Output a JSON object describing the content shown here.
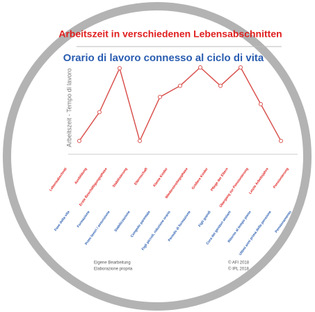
{
  "chart_data": {
    "type": "line",
    "title": "Arbeitszeit in  verschiedenen Lebensabschnitten",
    "subtitle": "Orario di lavoro connesso al ciclo di vita",
    "y_label": "Arbeitszeit - Tempo di lavoro",
    "categories": [
      "Lebensabschnitt",
      "Ausbildung",
      "Erste Beschäftigungsphase",
      "Stabilisierung",
      "Elternschaft",
      "Kleine Kinder",
      "Wiedereinstiegsphase",
      "Größere Kinder",
      "Pflege der Eltern",
      "Übergang zur Pensionierung",
      "Letzte Arbeitsjahre",
      "Pensionierung"
    ],
    "categories_it": [
      "Fase della vita",
      "Formazione",
      "Primi lavori / assunzione",
      "Stabilizzazione",
      "Congedo parentale",
      "Figli piccoli, riduzione orario",
      "Periodo di formazione",
      "Figli grandi",
      "Cura dei genitori anziani",
      "Ritorno al tempo pieno",
      "Ultimi anni prima della pensione",
      "Pensionamento"
    ],
    "series": [
      {
        "name": "Arbeitszeit",
        "color": "#d9534f",
        "values": [
          null,
          0.8,
          4.4,
          9.9,
          0.8,
          6.3,
          7.7,
          10,
          7.7,
          10,
          5.4,
          0.8
        ]
      }
    ],
    "ylim": [
      0,
      10
    ],
    "footer": {
      "left": [
        "Eigene Bearbeitung",
        "Elaborazione propria"
      ],
      "right": [
        "© AFI 2018",
        "© IPL 2018"
      ]
    }
  }
}
